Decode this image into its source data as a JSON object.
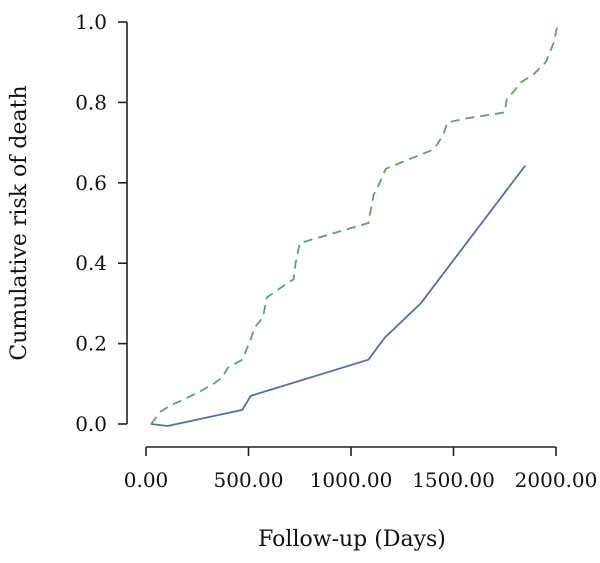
{
  "chart_data": {
    "type": "line",
    "title": "",
    "xlabel": "Follow-up (Days)",
    "ylabel": "Cumulative risk of death",
    "xlim": [
      0,
      2000
    ],
    "ylim": [
      0,
      1.0
    ],
    "x_ticks": [
      0,
      500,
      1000,
      1500,
      2000
    ],
    "x_tick_labels": [
      "0.00",
      "500.00",
      "1000.00",
      "1500.00",
      "2000.00"
    ],
    "y_ticks": [
      0,
      0.2,
      0.4,
      0.6,
      0.8,
      1.0
    ],
    "y_tick_labels": [
      "0.0",
      "0.2",
      "0.4",
      "0.6",
      "0.8",
      "1.0"
    ],
    "grid": false,
    "legend": "none",
    "series": [
      {
        "color": "#4f6db8",
        "dash": "solid",
        "x": [
          25,
          105,
          470,
          510,
          1085,
          1165,
          1340,
          1850
        ],
        "y": [
          0.0,
          -0.005,
          0.035,
          0.07,
          0.16,
          0.215,
          0.3,
          0.643
        ]
      },
      {
        "color": "#5aa36a",
        "dash": "dashed",
        "x": [
          25,
          70,
          115,
          180,
          260,
          330,
          370,
          400,
          470,
          510,
          530,
          570,
          590,
          660,
          720,
          730,
          750,
          1085,
          1110,
          1140,
          1170,
          1290,
          1390,
          1420,
          1450,
          1470,
          1560,
          1750,
          1760,
          1790,
          1830,
          1890,
          1950,
          1990,
          2010
        ],
        "y": [
          0.0,
          0.03,
          0.045,
          0.06,
          0.08,
          0.1,
          0.115,
          0.14,
          0.16,
          0.21,
          0.24,
          0.265,
          0.315,
          0.34,
          0.36,
          0.4,
          0.45,
          0.5,
          0.57,
          0.6,
          0.635,
          0.66,
          0.68,
          0.695,
          0.72,
          0.75,
          0.76,
          0.775,
          0.81,
          0.825,
          0.85,
          0.87,
          0.9,
          0.95,
          1.0
        ]
      }
    ]
  }
}
